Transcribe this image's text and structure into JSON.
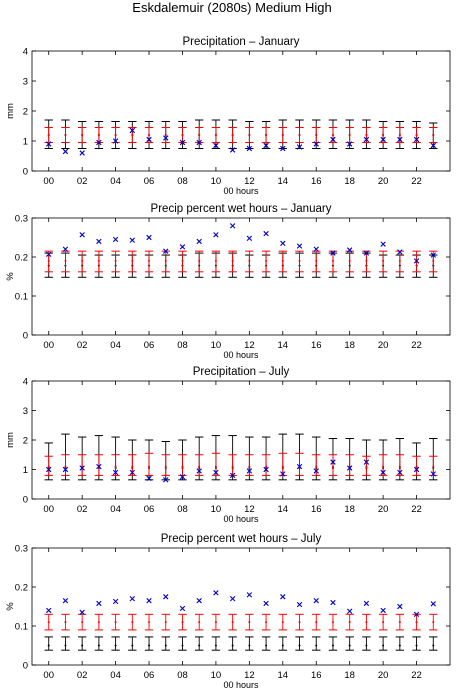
{
  "figure": {
    "title": "Eskdalemuir (2080s) Medium High"
  },
  "colors": {
    "black_bars": "#000000",
    "red_bars": "#ff0000",
    "markers": "#0000cc"
  },
  "chart_data": [
    {
      "type": "scatter",
      "title": "Precipitation – January",
      "xlabel": "00 hours",
      "ylabel": "mm",
      "xlim": [
        -1,
        24
      ],
      "ylim": [
        0,
        4
      ],
      "xticks": [
        0,
        2,
        4,
        6,
        8,
        10,
        12,
        14,
        16,
        18,
        20,
        22
      ],
      "xtick_labels": [
        "00",
        "02",
        "04",
        "06",
        "08",
        "10",
        "12",
        "14",
        "16",
        "18",
        "20",
        "22"
      ],
      "yticks": [
        0,
        1,
        2,
        3,
        4
      ],
      "ytick_labels": [
        "0",
        "1",
        "2",
        "3",
        "4"
      ],
      "x": [
        0,
        1,
        2,
        3,
        4,
        5,
        6,
        7,
        8,
        9,
        10,
        11,
        12,
        13,
        14,
        15,
        16,
        17,
        18,
        19,
        20,
        21,
        22,
        23
      ],
      "series": [
        {
          "kind": "errorbar",
          "color": "black",
          "center": [
            1.2,
            1.2,
            1.2,
            1.2,
            1.2,
            1.2,
            1.2,
            1.2,
            1.2,
            1.2,
            1.2,
            1.2,
            1.2,
            1.2,
            1.2,
            1.2,
            1.2,
            1.2,
            1.2,
            1.2,
            1.2,
            1.2,
            1.2,
            1.2
          ],
          "low": [
            0.75,
            0.75,
            0.75,
            0.75,
            0.75,
            0.75,
            0.75,
            0.75,
            0.75,
            0.75,
            0.75,
            0.75,
            0.75,
            0.75,
            0.75,
            0.75,
            0.75,
            0.75,
            0.75,
            0.75,
            0.75,
            0.75,
            0.75,
            0.75
          ],
          "high": [
            1.7,
            1.7,
            1.65,
            1.65,
            1.65,
            1.65,
            1.65,
            1.65,
            1.65,
            1.7,
            1.7,
            1.7,
            1.65,
            1.65,
            1.7,
            1.7,
            1.7,
            1.7,
            1.7,
            1.7,
            1.65,
            1.65,
            1.65,
            1.6
          ]
        },
        {
          "kind": "errorbar",
          "color": "red",
          "center": [
            1.2,
            1.2,
            1.2,
            1.2,
            1.2,
            1.2,
            1.2,
            1.2,
            1.2,
            1.2,
            1.2,
            1.2,
            1.2,
            1.2,
            1.2,
            1.2,
            1.2,
            1.2,
            1.2,
            1.2,
            1.2,
            1.2,
            1.2,
            1.2
          ],
          "low": [
            0.95,
            0.95,
            0.95,
            0.95,
            0.95,
            0.95,
            0.95,
            0.95,
            0.95,
            0.95,
            0.95,
            0.95,
            0.95,
            0.95,
            0.95,
            0.95,
            0.95,
            0.95,
            0.95,
            0.95,
            0.95,
            0.95,
            0.95,
            0.95
          ],
          "high": [
            1.45,
            1.45,
            1.45,
            1.45,
            1.45,
            1.45,
            1.45,
            1.45,
            1.45,
            1.45,
            1.45,
            1.45,
            1.45,
            1.45,
            1.45,
            1.45,
            1.45,
            1.45,
            1.45,
            1.45,
            1.45,
            1.45,
            1.45,
            1.45
          ]
        },
        {
          "kind": "marker",
          "color": "blue",
          "marker": "x",
          "values": [
            0.9,
            0.65,
            0.6,
            0.95,
            1.0,
            1.35,
            1.05,
            1.1,
            0.95,
            0.95,
            0.85,
            0.7,
            0.75,
            0.85,
            0.75,
            0.8,
            0.9,
            1.05,
            0.9,
            1.05,
            1.05,
            1.05,
            1.05,
            0.85
          ]
        }
      ]
    },
    {
      "type": "scatter",
      "title": "Precip percent wet hours – January",
      "xlabel": "00 hours",
      "ylabel": "%",
      "xlim": [
        -1,
        24
      ],
      "ylim": [
        0,
        0.3
      ],
      "xticks": [
        0,
        2,
        4,
        6,
        8,
        10,
        12,
        14,
        16,
        18,
        20,
        22
      ],
      "xtick_labels": [
        "00",
        "02",
        "04",
        "06",
        "08",
        "10",
        "12",
        "14",
        "16",
        "18",
        "20",
        "22"
      ],
      "yticks": [
        0,
        0.1,
        0.2,
        0.3
      ],
      "ytick_labels": [
        "0",
        "0.1",
        "0.2",
        "0.3"
      ],
      "x": [
        0,
        1,
        2,
        3,
        4,
        5,
        6,
        7,
        8,
        9,
        10,
        11,
        12,
        13,
        14,
        15,
        16,
        17,
        18,
        19,
        20,
        21,
        22,
        23
      ],
      "series": [
        {
          "kind": "errorbar",
          "color": "black",
          "center": [
            0.178,
            0.178,
            0.178,
            0.178,
            0.178,
            0.178,
            0.178,
            0.178,
            0.178,
            0.178,
            0.178,
            0.178,
            0.178,
            0.178,
            0.178,
            0.178,
            0.178,
            0.178,
            0.178,
            0.178,
            0.178,
            0.178,
            0.178,
            0.178
          ],
          "low": [
            0.148,
            0.148,
            0.148,
            0.148,
            0.148,
            0.148,
            0.148,
            0.148,
            0.148,
            0.148,
            0.148,
            0.148,
            0.148,
            0.148,
            0.148,
            0.148,
            0.148,
            0.148,
            0.148,
            0.148,
            0.148,
            0.148,
            0.148,
            0.148
          ],
          "high": [
            0.21,
            0.21,
            0.205,
            0.205,
            0.205,
            0.205,
            0.205,
            0.205,
            0.205,
            0.21,
            0.21,
            0.21,
            0.205,
            0.205,
            0.21,
            0.21,
            0.21,
            0.21,
            0.21,
            0.21,
            0.205,
            0.205,
            0.205,
            0.205
          ]
        },
        {
          "kind": "errorbar",
          "color": "red",
          "center": [
            0.19,
            0.19,
            0.19,
            0.19,
            0.19,
            0.19,
            0.19,
            0.19,
            0.19,
            0.19,
            0.19,
            0.19,
            0.19,
            0.19,
            0.19,
            0.19,
            0.19,
            0.19,
            0.19,
            0.19,
            0.19,
            0.19,
            0.19,
            0.19
          ],
          "low": [
            0.162,
            0.162,
            0.162,
            0.162,
            0.162,
            0.162,
            0.162,
            0.162,
            0.162,
            0.162,
            0.162,
            0.162,
            0.162,
            0.162,
            0.162,
            0.162,
            0.162,
            0.162,
            0.162,
            0.162,
            0.162,
            0.162,
            0.162,
            0.162
          ],
          "high": [
            0.215,
            0.215,
            0.215,
            0.215,
            0.215,
            0.215,
            0.215,
            0.215,
            0.215,
            0.215,
            0.215,
            0.215,
            0.215,
            0.215,
            0.215,
            0.215,
            0.215,
            0.215,
            0.215,
            0.215,
            0.215,
            0.215,
            0.215,
            0.215
          ]
        },
        {
          "kind": "marker",
          "color": "blue",
          "marker": "x",
          "values": [
            0.207,
            0.22,
            0.257,
            0.24,
            0.245,
            0.243,
            0.25,
            0.215,
            0.226,
            0.24,
            0.257,
            0.28,
            0.248,
            0.26,
            0.235,
            0.228,
            0.22,
            0.21,
            0.218,
            0.21,
            0.233,
            0.213,
            0.19,
            0.205
          ]
        }
      ]
    },
    {
      "type": "scatter",
      "title": "Precipitation – July",
      "xlabel": "00 hours",
      "ylabel": "mm",
      "xlim": [
        -1,
        24
      ],
      "ylim": [
        0,
        4
      ],
      "xticks": [
        0,
        2,
        4,
        6,
        8,
        10,
        12,
        14,
        16,
        18,
        20,
        22
      ],
      "xtick_labels": [
        "00",
        "02",
        "04",
        "06",
        "08",
        "10",
        "12",
        "14",
        "16",
        "18",
        "20",
        "22"
      ],
      "yticks": [
        0,
        1,
        2,
        3,
        4
      ],
      "ytick_labels": [
        "0",
        "1",
        "2",
        "3",
        "4"
      ],
      "x": [
        0,
        1,
        2,
        3,
        4,
        5,
        6,
        7,
        8,
        9,
        10,
        11,
        12,
        13,
        14,
        15,
        16,
        17,
        18,
        19,
        20,
        21,
        22,
        23
      ],
      "series": [
        {
          "kind": "errorbar",
          "color": "black",
          "center": [
            1.05,
            1.05,
            1.05,
            1.05,
            1.05,
            1.05,
            1.05,
            1.05,
            1.05,
            1.05,
            1.05,
            1.05,
            1.05,
            1.05,
            1.05,
            1.05,
            1.05,
            1.05,
            1.05,
            1.05,
            1.05,
            1.05,
            1.05,
            1.05
          ],
          "low": [
            0.65,
            0.65,
            0.65,
            0.65,
            0.65,
            0.65,
            0.65,
            0.65,
            0.65,
            0.65,
            0.65,
            0.65,
            0.65,
            0.65,
            0.65,
            0.65,
            0.65,
            0.65,
            0.65,
            0.65,
            0.65,
            0.65,
            0.65,
            0.65
          ],
          "high": [
            1.9,
            2.2,
            2.1,
            2.15,
            2.1,
            2.0,
            2.0,
            1.95,
            2.0,
            2.1,
            2.15,
            2.15,
            2.1,
            2.1,
            2.2,
            2.2,
            2.1,
            2.05,
            2.05,
            2.0,
            2.0,
            2.05,
            1.9,
            2.05
          ]
        },
        {
          "kind": "errorbar",
          "color": "red",
          "center": [
            1.1,
            1.1,
            1.1,
            1.1,
            1.1,
            1.1,
            1.1,
            1.1,
            1.1,
            1.1,
            1.1,
            1.1,
            1.1,
            1.1,
            1.1,
            1.1,
            1.1,
            1.1,
            1.1,
            1.1,
            1.1,
            1.1,
            1.1,
            1.1
          ],
          "low": [
            0.8,
            0.8,
            0.8,
            0.8,
            0.8,
            0.8,
            0.8,
            0.8,
            0.8,
            0.8,
            0.8,
            0.8,
            0.8,
            0.8,
            0.8,
            0.8,
            0.8,
            0.8,
            0.8,
            0.8,
            0.8,
            0.8,
            0.8,
            0.8
          ],
          "high": [
            1.45,
            1.5,
            1.5,
            1.5,
            1.5,
            1.5,
            1.55,
            1.5,
            1.5,
            1.5,
            1.55,
            1.5,
            1.5,
            1.5,
            1.55,
            1.55,
            1.5,
            1.5,
            1.5,
            1.45,
            1.5,
            1.5,
            1.45,
            1.45
          ]
        },
        {
          "kind": "marker",
          "color": "blue",
          "marker": "x",
          "values": [
            1.0,
            1.0,
            1.05,
            1.1,
            0.9,
            0.9,
            0.7,
            0.65,
            0.75,
            0.95,
            0.9,
            0.8,
            0.95,
            1.0,
            0.85,
            1.1,
            0.95,
            1.25,
            1.05,
            1.25,
            0.9,
            0.9,
            1.0,
            0.85
          ]
        }
      ]
    },
    {
      "type": "scatter",
      "title": "Precip percent wet hours – July",
      "xlabel": "00 hours",
      "ylabel": "%",
      "xlim": [
        -1,
        24
      ],
      "ylim": [
        0,
        0.3
      ],
      "xticks": [
        0,
        2,
        4,
        6,
        8,
        10,
        12,
        14,
        16,
        18,
        20,
        22
      ],
      "xtick_labels": [
        "00",
        "02",
        "04",
        "06",
        "08",
        "10",
        "12",
        "14",
        "16",
        "18",
        "20",
        "22"
      ],
      "yticks": [
        0,
        0.1,
        0.2,
        0.3
      ],
      "ytick_labels": [
        "0",
        "0.1",
        "0.2",
        "0.3"
      ],
      "x": [
        0,
        1,
        2,
        3,
        4,
        5,
        6,
        7,
        8,
        9,
        10,
        11,
        12,
        13,
        14,
        15,
        16,
        17,
        18,
        19,
        20,
        21,
        22,
        23
      ],
      "series": [
        {
          "kind": "errorbar",
          "color": "black",
          "center": [
            0.05,
            0.05,
            0.05,
            0.05,
            0.05,
            0.05,
            0.05,
            0.05,
            0.05,
            0.05,
            0.05,
            0.05,
            0.05,
            0.05,
            0.05,
            0.05,
            0.05,
            0.05,
            0.05,
            0.05,
            0.05,
            0.05,
            0.05,
            0.05
          ],
          "low": [
            0.038,
            0.038,
            0.038,
            0.038,
            0.038,
            0.038,
            0.038,
            0.038,
            0.038,
            0.038,
            0.038,
            0.038,
            0.038,
            0.038,
            0.038,
            0.038,
            0.038,
            0.038,
            0.038,
            0.038,
            0.038,
            0.038,
            0.038,
            0.038
          ],
          "high": [
            0.072,
            0.072,
            0.072,
            0.072,
            0.072,
            0.072,
            0.072,
            0.072,
            0.072,
            0.072,
            0.072,
            0.072,
            0.072,
            0.072,
            0.072,
            0.072,
            0.072,
            0.072,
            0.072,
            0.072,
            0.072,
            0.072,
            0.072,
            0.072
          ]
        },
        {
          "kind": "errorbar",
          "color": "red",
          "center": [
            0.11,
            0.11,
            0.11,
            0.11,
            0.11,
            0.11,
            0.11,
            0.11,
            0.11,
            0.11,
            0.11,
            0.11,
            0.11,
            0.11,
            0.11,
            0.11,
            0.11,
            0.11,
            0.11,
            0.11,
            0.11,
            0.11,
            0.11,
            0.11
          ],
          "low": [
            0.09,
            0.09,
            0.09,
            0.09,
            0.09,
            0.09,
            0.09,
            0.09,
            0.09,
            0.09,
            0.09,
            0.09,
            0.09,
            0.09,
            0.09,
            0.09,
            0.09,
            0.09,
            0.09,
            0.09,
            0.09,
            0.09,
            0.09,
            0.09
          ],
          "high": [
            0.13,
            0.13,
            0.13,
            0.13,
            0.13,
            0.13,
            0.13,
            0.13,
            0.13,
            0.13,
            0.13,
            0.13,
            0.13,
            0.13,
            0.13,
            0.13,
            0.13,
            0.13,
            0.13,
            0.13,
            0.13,
            0.13,
            0.13,
            0.13
          ]
        },
        {
          "kind": "marker",
          "color": "blue",
          "marker": "x",
          "values": [
            0.14,
            0.165,
            0.135,
            0.158,
            0.163,
            0.17,
            0.165,
            0.175,
            0.145,
            0.165,
            0.185,
            0.17,
            0.18,
            0.158,
            0.175,
            0.155,
            0.165,
            0.16,
            0.138,
            0.158,
            0.14,
            0.15,
            0.13,
            0.157
          ]
        }
      ]
    }
  ]
}
